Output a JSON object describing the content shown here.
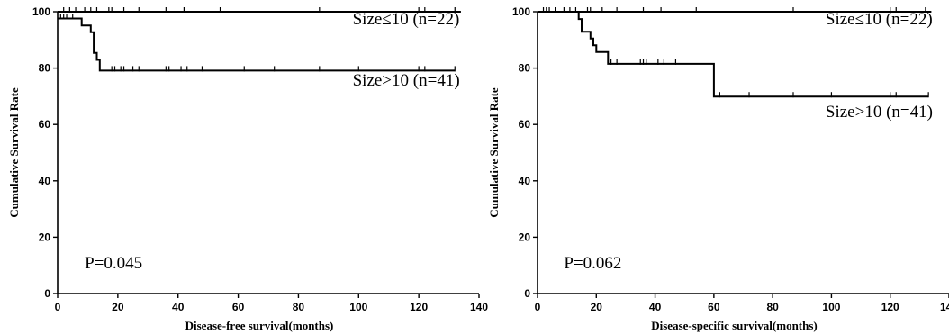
{
  "chart_data": [
    {
      "type": "line",
      "subtype": "kaplan-meier",
      "xlabel": "Disease-free survival(months)",
      "ylabel": "Cumulative Survival Rate",
      "xlim": [
        0,
        140
      ],
      "ylim": [
        0,
        100
      ],
      "xticks": [
        "0",
        "20",
        "40",
        "60",
        "80",
        "100",
        "120",
        "140"
      ],
      "yticks": [
        "0",
        "20",
        "40",
        "60",
        "80",
        "100"
      ],
      "annotation": "P=0.045",
      "series": [
        {
          "name": "Size≤10 (n=22)",
          "steps": [
            [
              0,
              100
            ],
            [
              134,
              100
            ]
          ],
          "censored": [
            2,
            4,
            6,
            9,
            11,
            13,
            17,
            18,
            22,
            27,
            36,
            42,
            54,
            87,
            120,
            122,
            132
          ]
        },
        {
          "name": "Size>10 (n=41)",
          "steps": [
            [
              0,
              97.6
            ],
            [
              8,
              97.6
            ],
            [
              8,
              95.1
            ],
            [
              11,
              95.1
            ],
            [
              11,
              92.7
            ],
            [
              12,
              92.7
            ],
            [
              12,
              85.4
            ],
            [
              13,
              85.4
            ],
            [
              13,
              82.9
            ],
            [
              14,
              82.9
            ],
            [
              14,
              79.1
            ],
            [
              132,
              79.1
            ]
          ],
          "censored": [
            1,
            2,
            3,
            5,
            18,
            19,
            21,
            22,
            25,
            27,
            36,
            37,
            41,
            43,
            48,
            62,
            72,
            87,
            100,
            120,
            122,
            132
          ]
        }
      ]
    },
    {
      "type": "line",
      "subtype": "kaplan-meier",
      "xlabel": "Disease-specific survival(months)",
      "ylabel": "Cumulative Survival Rate",
      "xlim": [
        0,
        140
      ],
      "ylim": [
        0,
        100
      ],
      "xticks": [
        "0",
        "20",
        "40",
        "60",
        "80",
        "100",
        "120",
        "140"
      ],
      "yticks": [
        "0",
        "20",
        "40",
        "60",
        "80",
        "100"
      ],
      "annotation": "P=0.062",
      "series": [
        {
          "name": "Size≤10 (n=22)",
          "steps": [
            [
              0,
              100
            ],
            [
              134,
              100
            ]
          ],
          "censored": [
            2,
            3,
            4,
            6,
            9,
            11,
            13,
            17,
            18,
            22,
            27,
            36,
            42,
            54,
            87,
            120,
            122,
            132
          ]
        },
        {
          "name": "Size>10 (n=41)",
          "steps": [
            [
              0,
              100
            ],
            [
              14,
              100
            ],
            [
              14,
              97.4
            ],
            [
              15,
              97.4
            ],
            [
              15,
              92.9
            ],
            [
              18,
              92.9
            ],
            [
              18,
              90.5
            ],
            [
              19,
              90.5
            ],
            [
              19,
              88.1
            ],
            [
              20,
              88.1
            ],
            [
              20,
              85.7
            ],
            [
              24,
              85.7
            ],
            [
              24,
              81.5
            ],
            [
              60,
              81.5
            ],
            [
              60,
              69.9
            ],
            [
              133,
              69.9
            ]
          ],
          "censored": [
            25,
            27,
            35,
            36,
            37,
            41,
            43,
            47,
            62,
            72,
            87,
            100,
            120,
            122,
            133
          ]
        }
      ]
    }
  ]
}
